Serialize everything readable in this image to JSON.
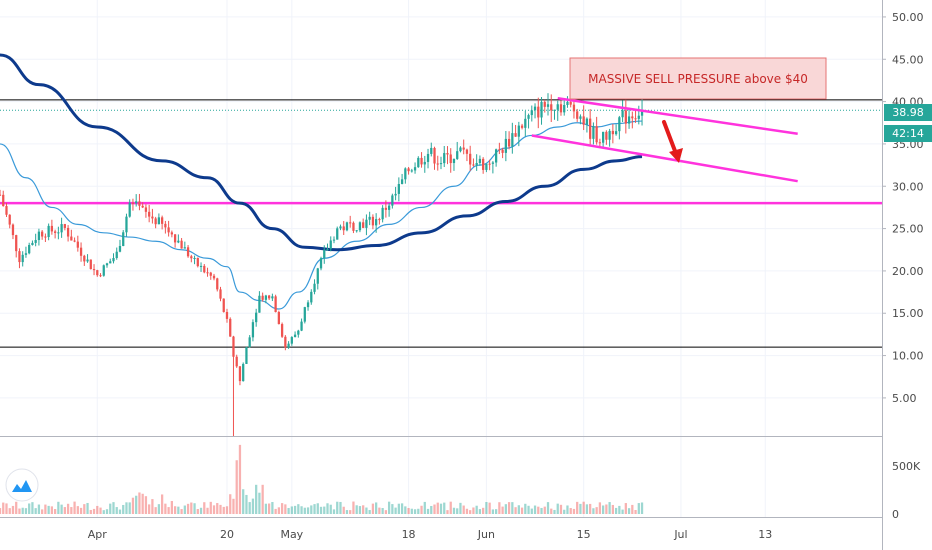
{
  "chart_data": {
    "type": "candlestick",
    "annotation": "MASSIVE SELL PRESSURE above $40",
    "price_axis": {
      "min": 0.5,
      "max": 52.0,
      "ticks": [
        "5.00",
        "10.00",
        "15.00",
        "20.00",
        "25.00",
        "30.00",
        "35.00",
        "40.00",
        "45.00",
        "50.00"
      ],
      "tick_values": [
        5,
        10,
        15,
        20,
        25,
        30,
        35,
        40,
        45,
        50
      ]
    },
    "volume_axis": {
      "ticks": [
        "0",
        "500K"
      ],
      "tick_values": [
        0,
        500000
      ],
      "max": 750000
    },
    "time_axis": {
      "labels": [
        "Apr",
        "20",
        "May",
        "18",
        "Jun",
        "15",
        "Jul",
        "13"
      ],
      "label_days": [
        15,
        35,
        45,
        63,
        75,
        90,
        105,
        118
      ],
      "start_day": 0,
      "end_day": 136
    },
    "last_price": "38.98",
    "countdown": "42:14",
    "colors": {
      "up": "#26a69a",
      "down": "#ef5350",
      "ma_long": "#0d3a8c",
      "ma_short": "#3a9ad9",
      "trend": "#ff33dd",
      "arrow": "#e31b1b",
      "annotation_bg": "#f9d7d7",
      "annotation_border": "#e57373",
      "price_tag": "#26a69a",
      "countdown_tag": "#26a69a"
    },
    "horizontal_levels": [
      {
        "price": 40.2,
        "color": "#000000"
      },
      {
        "price": 11.0,
        "color": "#000000"
      },
      {
        "price": 28.0,
        "color": "#ff33dd"
      }
    ],
    "trend_lines": [
      {
        "from": [
          86,
          40.4
        ],
        "to": [
          123,
          36.2
        ]
      },
      {
        "from": [
          82,
          36.0
        ],
        "to": [
          123,
          30.6
        ]
      }
    ],
    "ma_long_points": [
      [
        0,
        45.5
      ],
      [
        6,
        42
      ],
      [
        15,
        37
      ],
      [
        25,
        33
      ],
      [
        32,
        31
      ],
      [
        37,
        28
      ],
      [
        42,
        25
      ],
      [
        47,
        22.8
      ],
      [
        52,
        22.5
      ],
      [
        58,
        23
      ],
      [
        65,
        24.5
      ],
      [
        72,
        26.5
      ],
      [
        78,
        28.2
      ],
      [
        84,
        30
      ],
      [
        90,
        32
      ],
      [
        95,
        33
      ],
      [
        99,
        33.5
      ]
    ],
    "ma_short_points": [
      [
        0,
        35
      ],
      [
        4,
        31
      ],
      [
        8,
        27.5
      ],
      [
        12,
        25.5
      ],
      [
        16,
        24.5
      ],
      [
        20,
        24
      ],
      [
        24,
        23.5
      ],
      [
        28,
        22.5
      ],
      [
        32,
        21.5
      ],
      [
        35,
        20.5
      ],
      [
        37,
        17.5
      ],
      [
        40,
        16.5
      ],
      [
        43,
        15.5
      ],
      [
        46,
        17.5
      ],
      [
        50,
        21.5
      ],
      [
        55,
        23.5
      ],
      [
        60,
        25.5
      ],
      [
        65,
        27.5
      ],
      [
        70,
        30
      ],
      [
        74,
        32.5
      ],
      [
        78,
        34.5
      ],
      [
        82,
        36
      ],
      [
        86,
        37
      ],
      [
        89,
        37.5
      ],
      [
        92,
        37
      ],
      [
        95,
        37.4
      ],
      [
        99,
        37.7
      ]
    ],
    "price_anchors": [
      [
        0,
        29
      ],
      [
        3,
        21.5
      ],
      [
        6,
        24.5
      ],
      [
        10,
        25
      ],
      [
        15,
        19.5
      ],
      [
        18,
        22
      ],
      [
        20,
        28
      ],
      [
        22,
        27
      ],
      [
        24,
        26
      ],
      [
        27,
        24
      ],
      [
        30,
        21
      ],
      [
        33,
        19
      ],
      [
        35,
        14
      ],
      [
        36,
        10
      ],
      [
        37,
        7
      ],
      [
        38,
        11
      ],
      [
        40,
        17
      ],
      [
        42,
        17
      ],
      [
        44,
        11
      ],
      [
        46,
        13
      ],
      [
        48,
        18
      ],
      [
        50,
        22
      ],
      [
        52,
        25
      ],
      [
        55,
        25.5
      ],
      [
        58,
        26
      ],
      [
        61,
        29
      ],
      [
        63,
        32
      ],
      [
        66,
        34
      ],
      [
        68,
        33
      ],
      [
        71,
        34
      ],
      [
        73,
        33
      ],
      [
        75,
        32.5
      ],
      [
        78,
        35
      ],
      [
        80,
        37
      ],
      [
        83,
        39
      ],
      [
        85,
        40
      ],
      [
        87,
        39.5
      ],
      [
        89,
        39
      ],
      [
        91,
        36.5
      ],
      [
        93,
        35.5
      ],
      [
        95,
        37.5
      ],
      [
        97,
        38.5
      ],
      [
        99,
        38.98
      ]
    ]
  }
}
